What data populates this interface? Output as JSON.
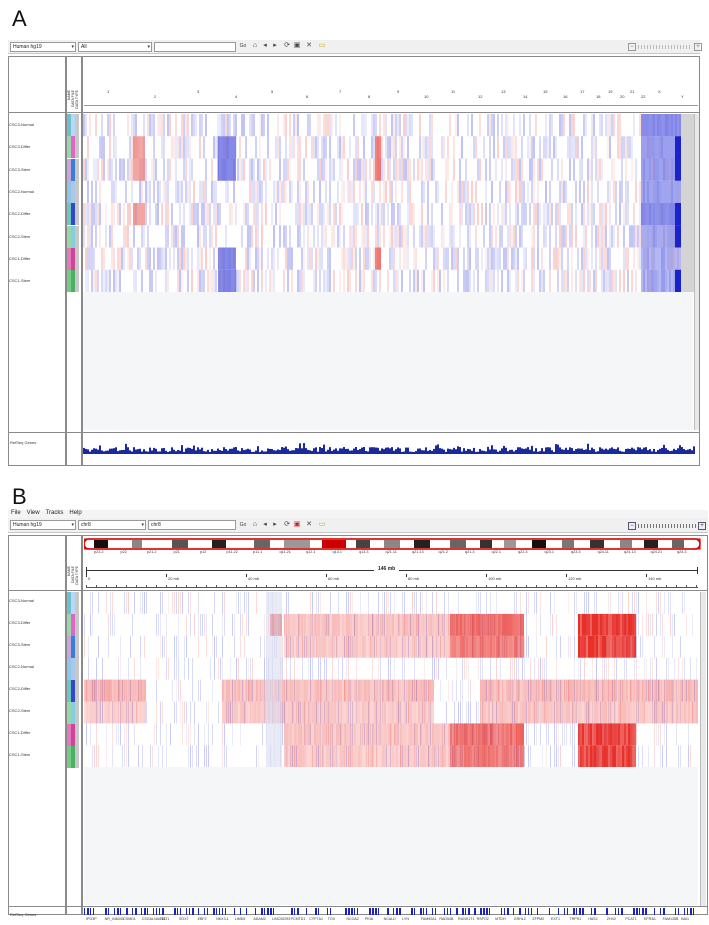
{
  "panels": {
    "a": {
      "label": "A",
      "genome": "Human hg19",
      "locus_value": "All",
      "go_label": "Go",
      "chromosomes": [
        "1",
        "2",
        "3",
        "4",
        "5",
        "6",
        "7",
        "8",
        "9",
        "10",
        "11",
        "12",
        "13",
        "14",
        "15",
        "16",
        "17",
        "18",
        "19",
        "20",
        "21",
        "22",
        "X",
        "Y"
      ],
      "samples": [
        "CSC3-Normal",
        "CSC3-Differ",
        "CSC3-Stem",
        "CSC2-Normal",
        "CSC2-Differ",
        "CSC2-Stem",
        "CSC1-Differ",
        "CSC1-Stem"
      ],
      "attr_headers": [
        "NAME",
        "DATA FILE",
        "DATA TYPE"
      ],
      "refseq_label": "RefSeq Genes"
    },
    "b": {
      "label": "B",
      "menu": [
        "File",
        "View",
        "Tracks",
        "Help"
      ],
      "genome": "Human hg19",
      "chrom_value": "chr8",
      "locus_value": "chr8",
      "go_label": "Go",
      "cytobands": [
        "p23.2",
        "p22",
        "p21.2",
        "p21",
        "p12",
        "p11.22",
        "p11.1",
        "q11.21",
        "q12.1",
        "q13.1",
        "q13.3",
        "q21.11",
        "q21.13",
        "q21.2",
        "q21.3",
        "q22.1",
        "q22.3",
        "q23.1",
        "q23.3",
        "q24.11",
        "q24.13",
        "q24.21",
        "q24.3"
      ],
      "scale_label": "146 mb",
      "ruler": [
        "0",
        "20 mb",
        "40 mb",
        "60 mb",
        "80 mb",
        "100 mb",
        "120 mb",
        "140 mb"
      ],
      "samples": [
        "CSC3-Normal",
        "CSC3-Differ",
        "CSC3-Stem",
        "CSC2-Normal",
        "CSC2-Differ",
        "CSC2-Stem",
        "CSC1-Differ",
        "CSC1-Stem"
      ],
      "attr_headers": [
        "NAME",
        "DATA FILE",
        "DATA TYPE"
      ],
      "refseq_label": "RefSeq Genes",
      "genes": [
        "IPO3P",
        "NR_046040",
        "CSMD1",
        "CSGALNACT1",
        "NAT1",
        "SOX7",
        "EBF2",
        "NKX3-1",
        "LIMD5",
        "ADAM2",
        "LINC00293",
        "PCMTD1",
        "CYP7A1",
        "TOX",
        "NCOA2",
        "PKIA",
        "NCALD",
        "LYN",
        "FAM92A1",
        "RAD54B",
        "RUNX1T1",
        "RSPO2",
        "MTDH",
        "GRHL2",
        "ZFPM2",
        "EXT1",
        "TRPS1",
        "HAS2",
        "ZHX2",
        "PCAT1",
        "EFR3A",
        "FAM135B",
        "BAI1"
      ]
    }
  },
  "colors": {
    "gain": "#e8302a",
    "loss": "#2d32d8",
    "track_bg": "#ffffff",
    "empty": "#f5f6f8"
  }
}
